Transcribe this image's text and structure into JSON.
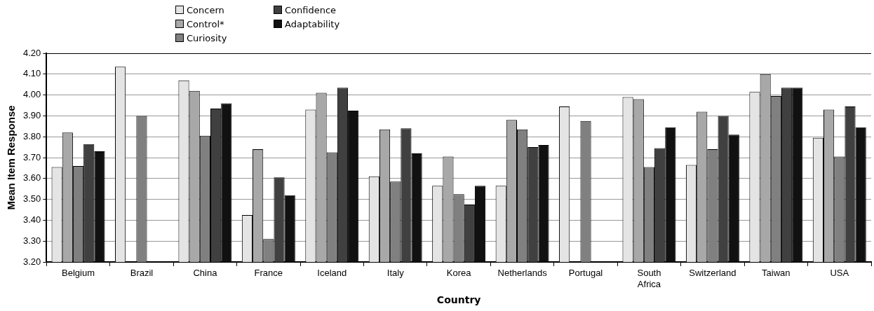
{
  "chart_data": {
    "type": "bar",
    "xlabel": "Country",
    "ylabel": "Mean Item Response",
    "categories": [
      "Belgium",
      "Brazil",
      "China",
      "France",
      "Iceland",
      "Italy",
      "Korea",
      "Netherlands",
      "Portugal",
      "South Africa",
      "Switzerland",
      "Taiwan",
      "USA"
    ],
    "series": [
      {
        "name": "Concern",
        "color": "#e4e4e4",
        "values": [
          3.655,
          4.135,
          4.07,
          3.425,
          3.93,
          3.61,
          3.565,
          3.565,
          3.945,
          3.99,
          3.665,
          4.015,
          3.795
        ]
      },
      {
        "name": "Control*",
        "color": "#a8a8a8",
        "values": [
          3.82,
          null,
          4.02,
          3.74,
          4.01,
          3.835,
          3.705,
          3.88,
          null,
          3.98,
          3.92,
          4.1,
          3.93
        ]
      },
      {
        "name": "Curiosity",
        "color": "#808080",
        "values": [
          3.66,
          3.9,
          3.805,
          3.31,
          3.725,
          3.585,
          3.525,
          3.835,
          3.875,
          3.655,
          3.74,
          3.995,
          3.705
        ]
      },
      {
        "name": "Confidence",
        "color": "#404040",
        "values": [
          3.765,
          null,
          3.935,
          3.605,
          4.035,
          3.84,
          3.475,
          3.75,
          null,
          3.745,
          3.9,
          4.035,
          3.945
        ]
      },
      {
        "name": "Adaptability",
        "color": "#111111",
        "values": [
          3.73,
          null,
          3.96,
          3.52,
          3.925,
          3.72,
          3.565,
          3.76,
          null,
          3.845,
          3.81,
          4.035,
          3.845
        ]
      }
    ],
    "ylim": [
      3.2,
      4.2
    ],
    "yticks": [
      {
        "value": 3.2,
        "label": "3.20"
      },
      {
        "value": 3.3,
        "label": "3.30"
      },
      {
        "value": 3.4,
        "label": "3.40"
      },
      {
        "value": 3.5,
        "label": "3.50"
      },
      {
        "value": 3.6,
        "label": "3.60"
      },
      {
        "value": 3.7,
        "label": "3.70"
      },
      {
        "value": 3.8,
        "label": "3.80"
      },
      {
        "value": 3.9,
        "label": "3.90"
      },
      {
        "value": 4.0,
        "label": "4.00"
      },
      {
        "value": 4.1,
        "label": "4.10"
      },
      {
        "value": 4.2,
        "label": "4.20"
      }
    ],
    "grid": "y",
    "legend": "top"
  }
}
